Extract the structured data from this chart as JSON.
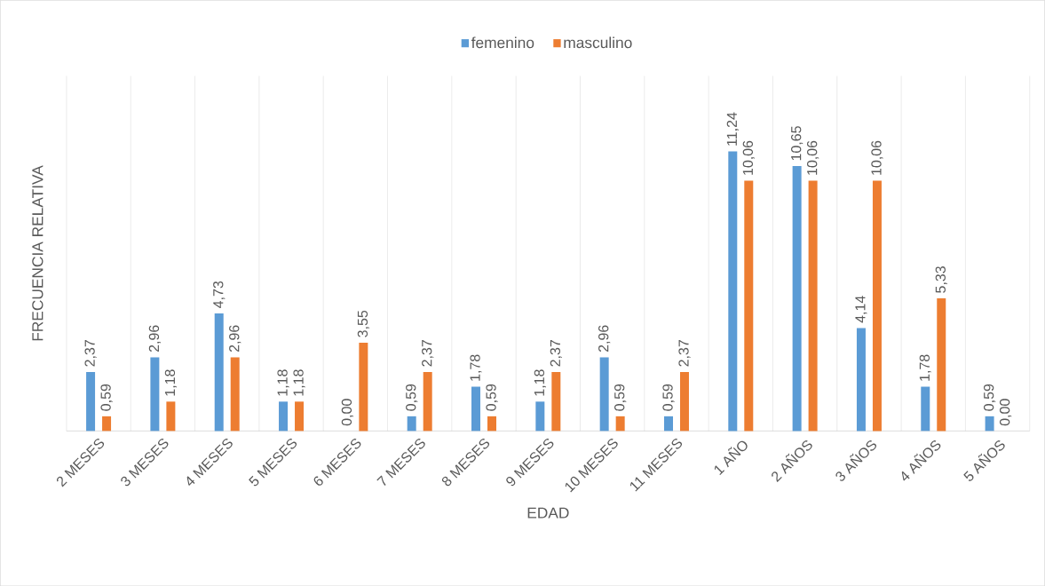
{
  "chart_data": {
    "type": "bar",
    "xlabel": "EDAD",
    "ylabel": "FRECUENCIA RELATIVA",
    "categories": [
      "2 MESES",
      "3 MESES",
      "4 MESES",
      "5 MESES",
      "6 MESES",
      "7 MESES",
      "8 MESES",
      "9 MESES",
      "10 MESES",
      "11 MESES",
      "1 AÑO",
      "2 AÑOS",
      "3 AÑOS",
      "4 AÑOS",
      "5 AÑOS"
    ],
    "series": [
      {
        "name": "femenino",
        "color": "#5b9bd5",
        "values": [
          2.37,
          2.96,
          4.73,
          1.18,
          0.0,
          0.59,
          1.78,
          1.18,
          2.96,
          0.59,
          11.24,
          10.65,
          4.14,
          1.78,
          0.59
        ],
        "value_labels": [
          "2,37",
          "2,96",
          "4,73",
          "1,18",
          "0,00",
          "0,59",
          "1,78",
          "1,18",
          "2,96",
          "0,59",
          "11,24",
          "10,65",
          "4,14",
          "1,78",
          "0,59"
        ]
      },
      {
        "name": "masculino",
        "color": "#ed7d31",
        "values": [
          0.59,
          1.18,
          2.96,
          1.18,
          3.55,
          2.37,
          0.59,
          2.37,
          0.59,
          2.37,
          10.06,
          10.06,
          10.06,
          5.33,
          0.0
        ],
        "value_labels": [
          "0,59",
          "1,18",
          "2,96",
          "1,18",
          "3,55",
          "2,37",
          "0,59",
          "2,37",
          "0,59",
          "2,37",
          "10,06",
          "10,06",
          "10,06",
          "5,33",
          "0,00"
        ]
      }
    ],
    "grid": "x",
    "legend": "top"
  }
}
